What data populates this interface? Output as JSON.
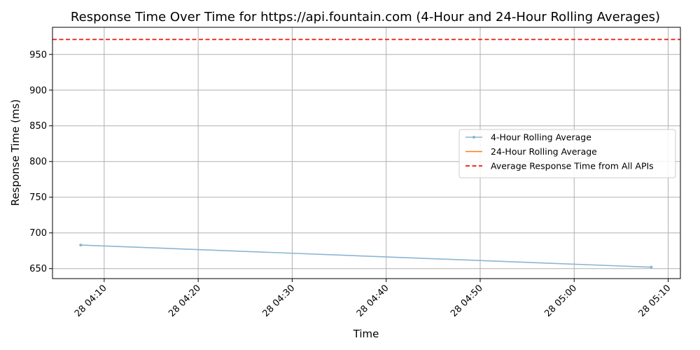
{
  "chart_data": {
    "type": "line",
    "title": "Response Time Over Time for https://api.fountain.com (4-Hour and 24-Hour Rolling Averages)",
    "xlabel": "Time",
    "ylabel": "Response Time (ms)",
    "x_tick_labels": [
      "28 04:10",
      "28 04:20",
      "28 04:30",
      "28 04:40",
      "28 04:50",
      "28 05:00",
      "28 05:10"
    ],
    "x_tick_minutes": [
      10,
      20,
      30,
      40,
      50,
      60,
      70
    ],
    "xlim_minutes": [
      4.5,
      71.3
    ],
    "y_ticks": [
      650,
      700,
      750,
      800,
      850,
      900,
      950
    ],
    "ylim": [
      636,
      988
    ],
    "grid": true,
    "legend_position": "center-right",
    "series": [
      {
        "name": "4-Hour Rolling Average",
        "color": "#8ab6d2",
        "style": "solid-with-markers",
        "x_minutes": [
          7.5,
          68.2
        ],
        "x": [
          "28 04:07:30",
          "28 05:08:12"
        ],
        "values": [
          683,
          652
        ]
      },
      {
        "name": "24-Hour Rolling Average",
        "color": "#ff7f0e",
        "style": "solid",
        "x_minutes": [],
        "x": [],
        "values": []
      }
    ],
    "reference_lines": [
      {
        "name": "Average Response Time from All APIs",
        "color": "#e8180f",
        "style": "dashed",
        "value": 971
      }
    ]
  }
}
